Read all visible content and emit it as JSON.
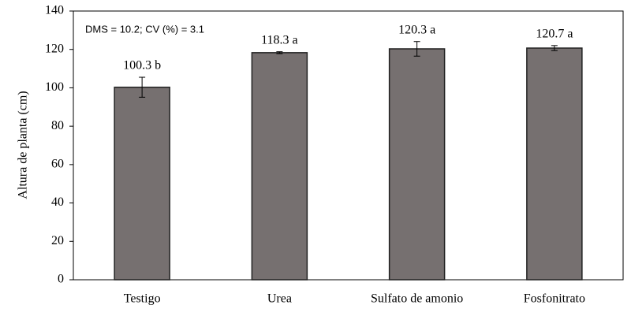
{
  "chart_data": {
    "type": "bar",
    "y_label": "Altura de planta (cm)",
    "annotation": "DMS = 10.2; CV (%) = 3.1",
    "categories": [
      "Testigo",
      "Urea",
      "Sulfato de amonio",
      "Fosfonitrato"
    ],
    "values": [
      100.3,
      118.3,
      120.3,
      120.7
    ],
    "value_labels": [
      "100.3 b",
      "118.3 a",
      "120.3 a",
      "120.7 a"
    ],
    "errors": [
      5.2,
      0.5,
      3.8,
      1.3
    ],
    "color": "#767070",
    "ylim": [
      0,
      140
    ],
    "yticks": [
      0,
      20,
      40,
      60,
      80,
      100,
      120,
      140
    ],
    "grid": false
  }
}
